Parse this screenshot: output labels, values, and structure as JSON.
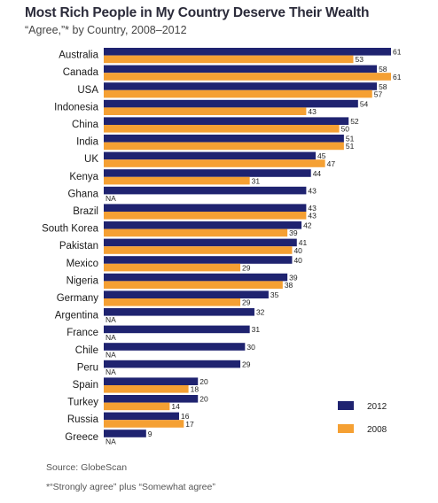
{
  "chart_data": {
    "type": "bar",
    "orientation": "horizontal",
    "title": "Most Rich People in My Country Deserve Their Wealth",
    "subtitle": "“Agree,”* by Country, 2008–2012",
    "categories": [
      "Australia",
      "Canada",
      "USA",
      "Indonesia",
      "China",
      "India",
      "UK",
      "Kenya",
      "Ghana",
      "Brazil",
      "South Korea",
      "Pakistan",
      "Mexico",
      "Nigeria",
      "Germany",
      "Argentina",
      "France",
      "Chile",
      "Peru",
      "Spain",
      "Turkey",
      "Russia",
      "Greece"
    ],
    "series": [
      {
        "name": "2012",
        "color": "#1f2370",
        "values": [
          61,
          58,
          58,
          54,
          52,
          51,
          45,
          44,
          43,
          43,
          42,
          41,
          40,
          39,
          35,
          32,
          31,
          30,
          29,
          20,
          20,
          16,
          9
        ],
        "labels": [
          "61",
          "58",
          "58",
          "54",
          "52",
          "51",
          "45",
          "44",
          "43",
          "43",
          "42",
          "41",
          "40",
          "39",
          "35",
          "32",
          "31",
          "30",
          "29",
          "20",
          "20",
          "16",
          "9"
        ]
      },
      {
        "name": "2008",
        "color": "#f5a033",
        "values": [
          53,
          61,
          57,
          43,
          50,
          51,
          47,
          31,
          null,
          43,
          39,
          40,
          29,
          38,
          29,
          null,
          null,
          null,
          null,
          18,
          14,
          17,
          null
        ],
        "labels": [
          "53",
          "61",
          "57",
          "43",
          "50",
          "51",
          "47",
          "31",
          "NA",
          "43",
          "39",
          "40",
          "29",
          "38",
          "29",
          "NA",
          "NA",
          "NA",
          "NA",
          "18",
          "14",
          "17",
          "NA"
        ]
      }
    ],
    "xlim": [
      0,
      61
    ],
    "grid": false,
    "legend_position": "bottom-right"
  },
  "source_note": "Source: GlobeScan",
  "footnote": "*“Strongly agree” plus “Somewhat agree”"
}
